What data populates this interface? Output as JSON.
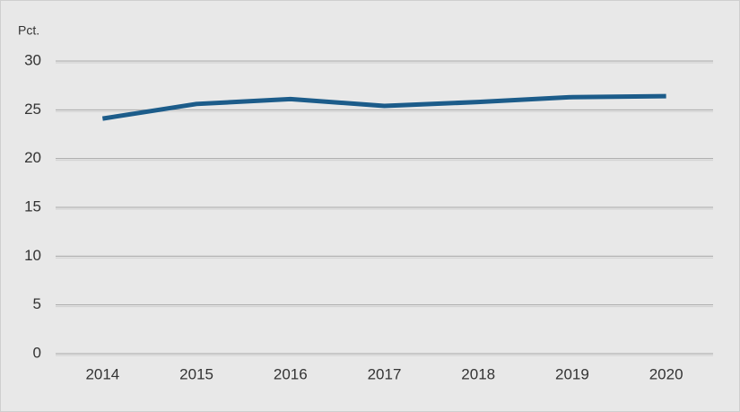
{
  "chart_data": {
    "type": "line",
    "y_label": "Pct.",
    "categories": [
      "2014",
      "2015",
      "2016",
      "2017",
      "2018",
      "2019",
      "2020"
    ],
    "series": [
      {
        "name": null,
        "color": "#1c5c8a",
        "values": [
          24.1,
          25.6,
          26.1,
          25.4,
          25.8,
          26.3,
          26.4
        ]
      }
    ],
    "ylim": [
      0,
      30
    ],
    "yticks": [
      0,
      5,
      10,
      15,
      20,
      25,
      30
    ],
    "grid": true
  }
}
